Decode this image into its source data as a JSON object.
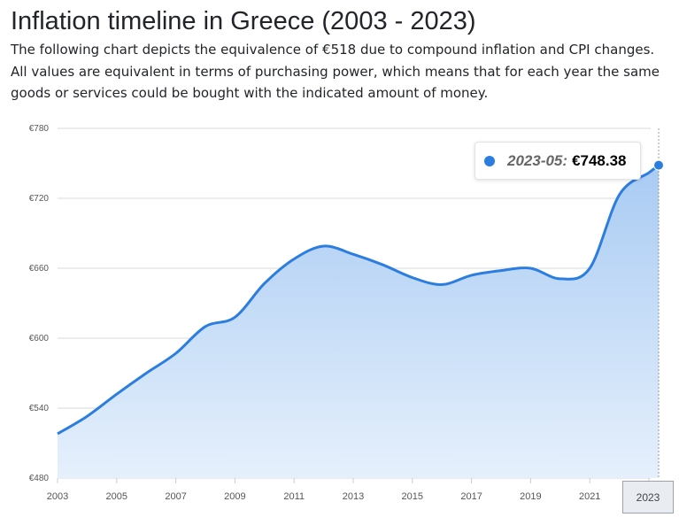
{
  "title": "Inflation timeline in Greece (2003 - 2023)",
  "description": "The following chart depicts the equivalence of €518 due to compound inflation and CPI changes. All values are equivalent in terms of purchasing power, which means that for each year the same goods or services could be bought with the indicated amount of money.",
  "tooltip": {
    "date": "2023-05:",
    "value": "€748.38"
  },
  "crosshair_label": "2023",
  "colors": {
    "line": "#2b7de0",
    "fill_top": "#a9cbf3",
    "fill_bottom": "#e6f0fc"
  },
  "chart_data": {
    "type": "area",
    "title": "",
    "xlabel": "",
    "ylabel": "",
    "ylim": [
      480,
      780
    ],
    "grid": true,
    "y_ticks": [
      "€480",
      "€540",
      "€600",
      "€660",
      "€720",
      "€780"
    ],
    "y_tick_values": [
      480,
      540,
      600,
      660,
      720,
      780
    ],
    "x_ticks": [
      "2003",
      "2005",
      "2007",
      "2009",
      "2011",
      "2013",
      "2015",
      "2017",
      "2019",
      "2021",
      "2023"
    ],
    "x": [
      2003,
      2004,
      2005,
      2006,
      2007,
      2008,
      2009,
      2010,
      2011,
      2012,
      2013,
      2014,
      2015,
      2016,
      2017,
      2018,
      2019,
      2020,
      2021,
      2022,
      2023,
      2023.33
    ],
    "values": [
      518,
      533,
      552,
      570,
      587,
      610,
      618,
      647,
      668,
      679,
      672,
      663,
      652,
      646,
      654,
      658,
      660,
      651,
      660,
      723,
      742,
      748.38
    ]
  }
}
